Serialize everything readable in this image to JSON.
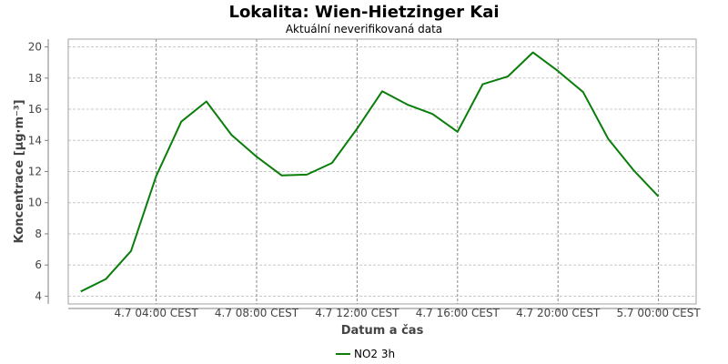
{
  "chart_data": {
    "type": "line",
    "title": "Lokalita: Wien-Hietzinger Kai",
    "subtitle": "Aktuální neverifikovaná data",
    "xlabel": "Datum a čas",
    "ylabel": "Koncentrace [µg·m⁻³]",
    "ylim": [
      3.5,
      20.5
    ],
    "yticks": [
      4,
      6,
      8,
      10,
      12,
      14,
      16,
      18,
      20
    ],
    "xlim": [
      "4.7 00:30 CEST",
      "5.7 01:30 CEST"
    ],
    "xticks": [
      {
        "x": "4.7 04:00 CEST",
        "label": "4.7 04:00 CEST"
      },
      {
        "x": "4.7 08:00 CEST",
        "label": "4.7 08:00 CEST"
      },
      {
        "x": "4.7 12:00 CEST",
        "label": "4.7 12:00 CEST"
      },
      {
        "x": "4.7 16:00 CEST",
        "label": "4.7 16:00 CEST"
      },
      {
        "x": "4.7 20:00 CEST",
        "label": "4.7 20:00 CEST"
      },
      {
        "x": "5.7 00:00 CEST",
        "label": "5.7 00:00 CEST"
      }
    ],
    "grid": true,
    "legend_position": "bottom",
    "series": [
      {
        "name": "NO2 3h",
        "color": "#0a7d0a",
        "points": [
          {
            "x": "4.7 01:00 CEST",
            "y": 4.3
          },
          {
            "x": "4.7 02:00 CEST",
            "y": 5.1
          },
          {
            "x": "4.7 03:00 CEST",
            "y": 6.9
          },
          {
            "x": "4.7 04:00 CEST",
            "y": 11.7
          },
          {
            "x": "4.7 05:00 CEST",
            "y": 15.2
          },
          {
            "x": "4.7 06:00 CEST",
            "y": 16.5
          },
          {
            "x": "4.7 07:00 CEST",
            "y": 14.35
          },
          {
            "x": "4.7 08:00 CEST",
            "y": 12.95
          },
          {
            "x": "4.7 09:00 CEST",
            "y": 11.75
          },
          {
            "x": "4.7 10:00 CEST",
            "y": 11.8
          },
          {
            "x": "4.7 11:00 CEST",
            "y": 12.55
          },
          {
            "x": "4.7 12:00 CEST",
            "y": 14.75
          },
          {
            "x": "4.7 13:00 CEST",
            "y": 17.15
          },
          {
            "x": "4.7 14:00 CEST",
            "y": 16.3
          },
          {
            "x": "4.7 15:00 CEST",
            "y": 15.7
          },
          {
            "x": "4.7 16:00 CEST",
            "y": 14.55
          },
          {
            "x": "4.7 17:00 CEST",
            "y": 17.6
          },
          {
            "x": "4.7 18:00 CEST",
            "y": 18.1
          },
          {
            "x": "4.7 19:00 CEST",
            "y": 19.65
          },
          {
            "x": "4.7 20:00 CEST",
            "y": 18.45
          },
          {
            "x": "4.7 21:00 CEST",
            "y": 17.1
          },
          {
            "x": "4.7 22:00 CEST",
            "y": 14.1
          },
          {
            "x": "4.7 23:00 CEST",
            "y": 12.1
          },
          {
            "x": "5.7 00:00 CEST",
            "y": 10.4
          }
        ]
      }
    ]
  }
}
